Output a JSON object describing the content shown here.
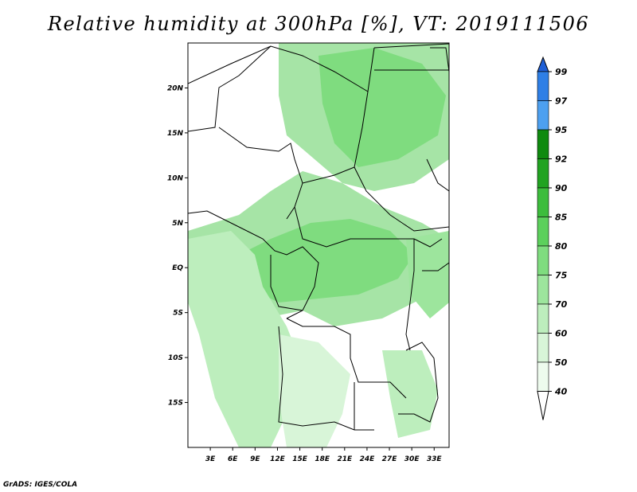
{
  "title": "Relative humidity at 300hPa [%], VT: 2019111506",
  "credit": "GrADS: IGES/COLA",
  "map": {
    "lon_range": [
      0,
      35
    ],
    "lat_range": [
      -20,
      25
    ],
    "lat_labels": [
      "20N",
      "15N",
      "10N",
      "5N",
      "EQ",
      "5S",
      "10S",
      "15S"
    ],
    "lat_values": [
      20,
      15,
      10,
      5,
      0,
      -5,
      -10,
      -15
    ],
    "lon_labels": [
      "3E",
      "6E",
      "9E",
      "12E",
      "15E",
      "18E",
      "21E",
      "24E",
      "27E",
      "30E",
      "33E"
    ],
    "lon_values": [
      3,
      6,
      9,
      12,
      15,
      18,
      21,
      24,
      27,
      30,
      33
    ]
  },
  "colorbar": {
    "levels": [
      "99",
      "97",
      "95",
      "92",
      "90",
      "85",
      "80",
      "75",
      "70",
      "60",
      "50",
      "40"
    ],
    "colors": [
      "#1f5fd6",
      "#2e7fe6",
      "#4da0f0",
      "#0f8a0f",
      "#21a321",
      "#3cbd3c",
      "#5cd05c",
      "#7fdc7f",
      "#9de59d",
      "#bdeebd",
      "#d8f5d8",
      "#eefbee"
    ]
  },
  "land_color": "#ffffff",
  "border_color": "#000000"
}
